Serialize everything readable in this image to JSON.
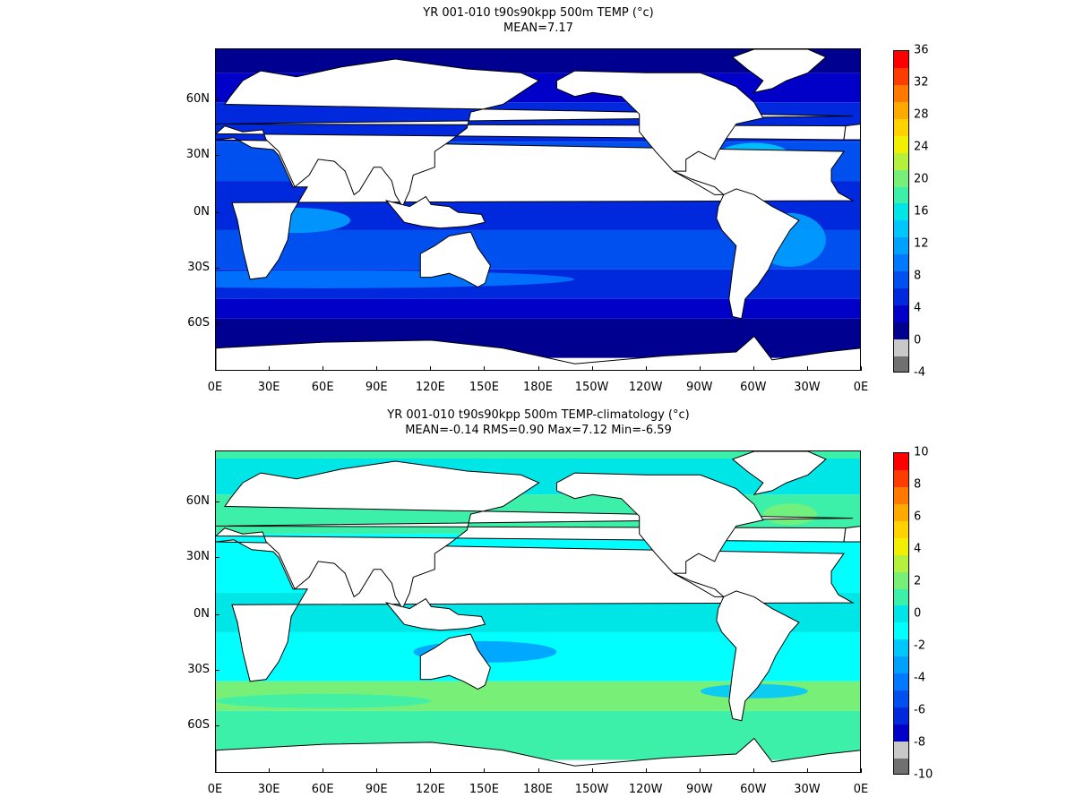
{
  "panels": [
    {
      "title_line1": "YR 001-010 t90s90kpp 500m TEMP (°c)",
      "title_line2": "MEAN=7.17",
      "y_labels": [
        "60N",
        "30N",
        "0N",
        "30S",
        "60S"
      ],
      "x_labels": [
        "0E",
        "30E",
        "60E",
        "90E",
        "120E",
        "150E",
        "180E",
        "150W",
        "120W",
        "90W",
        "60W",
        "30W",
        "0E"
      ],
      "colorbar_labels": [
        "36",
        "32",
        "28",
        "24",
        "20",
        "16",
        "12",
        "8",
        "4",
        "0",
        "-4"
      ],
      "colorbar_colors": [
        "#ff0000",
        "#ff3c00",
        "#ff7800",
        "#ffaa00",
        "#ffd200",
        "#f0f000",
        "#b4f03c",
        "#78f078",
        "#3cf0aa",
        "#00e6e6",
        "#00c8ff",
        "#00a0ff",
        "#0078ff",
        "#0050f0",
        "#0028dc",
        "#0000c8",
        "#000090",
        "#c8c8c8",
        "#707070"
      ],
      "ocean_palette": [
        "#000090",
        "#0000c8",
        "#0028dc",
        "#0050f0",
        "#0078ff",
        "#00a0ff",
        "#00c8ff",
        "#00e6e6"
      ]
    },
    {
      "title_line1": "YR 001-010 t90s90kpp 500m TEMP-climatology (°c)",
      "title_line2": "MEAN=-0.14   RMS=0.90   Max=7.12   Min=-6.59",
      "y_labels": [
        "60N",
        "30N",
        "0N",
        "30S",
        "60S"
      ],
      "x_labels": [
        "0E",
        "30E",
        "60E",
        "90E",
        "120E",
        "150E",
        "180E",
        "150W",
        "120W",
        "90W",
        "60W",
        "30W",
        "0E"
      ],
      "colorbar_labels": [
        "10",
        "8",
        "6",
        "4",
        "2",
        "0",
        "-2",
        "-4",
        "-6",
        "-8",
        "-10"
      ],
      "colorbar_colors": [
        "#ff0000",
        "#ff3c00",
        "#ff7800",
        "#ffaa00",
        "#ffd200",
        "#f0f000",
        "#b4f03c",
        "#78f078",
        "#3cf0aa",
        "#00e6e6",
        "#00ffff",
        "#00c8ff",
        "#00a0ff",
        "#0078ff",
        "#0050f0",
        "#0028dc",
        "#0000c8",
        "#c8c8c8",
        "#707070"
      ],
      "ocean_palette": [
        "#00ffff",
        "#00e6e6",
        "#3cf0aa",
        "#78f078",
        "#00c8ff",
        "#00a0ff"
      ]
    }
  ]
}
